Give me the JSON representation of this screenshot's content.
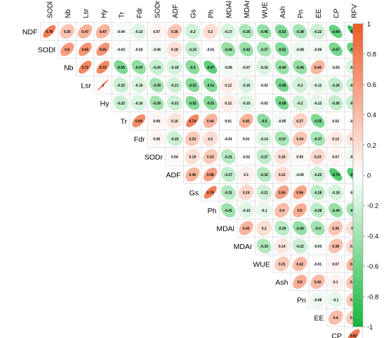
{
  "chart_data": {
    "type": "heatmap",
    "style": "ellipse correlogram (upper triangle)",
    "variables": [
      "NDF",
      "SODl",
      "Nb",
      "Lsr",
      "Hy",
      "Tr",
      "Fdr",
      "SODr",
      "ADF",
      "Gs",
      "Ph",
      "MDAl",
      "MDAr",
      "WUE",
      "Ash",
      "Pn",
      "EE",
      "CP",
      "RFV"
    ],
    "column_labels": [
      "SODl",
      "Nb",
      "Lsr",
      "Hy",
      "Tr",
      "Fdr",
      "SODr",
      "ADF",
      "Gs",
      "Ph",
      "MDAl",
      "MDAr",
      "WUE",
      "Ash",
      "Pn",
      "EE",
      "CP",
      "RFV"
    ],
    "row_labels": [
      "NDF",
      "SODl",
      "Nb",
      "Lsr",
      "Hy",
      "Tr",
      "Fdr",
      "SODr",
      "ADF",
      "Gs",
      "Ph",
      "MDAl",
      "MDAr",
      "WUE",
      "Ash",
      "Pn",
      "EE",
      "CP"
    ],
    "rows": [
      {
        "label": "NDF",
        "values": [
          0.78,
          0.36,
          0.47,
          0.47,
          -0.04,
          -0.13,
          0.07,
          0.36,
          -0.2,
          0.2,
          -0.17,
          -0.35,
          -0.45,
          -0.53,
          -0.38,
          -0.22,
          -0.64,
          -0.89
        ]
      },
      {
        "label": "SODl",
        "values": [
          0.6,
          0.65,
          0.65,
          -0.03,
          -0.02,
          -0.06,
          0.18,
          -0.24,
          -0.01,
          -0.44,
          -0.43,
          -0.37,
          -0.52,
          -0.08,
          -0.06,
          -0.57,
          -0.63
        ]
      },
      {
        "label": "Nb",
        "values": [
          0.72,
          0.72,
          -0.55,
          -0.47,
          -0.24,
          -0.19,
          -0.5,
          -0.67,
          -0.06,
          -0.07,
          -0.16,
          -0.44,
          -0.45,
          0.44,
          -0.03,
          -0.16
        ]
      },
      {
        "label": "Lsr",
        "values": [
          1,
          -0.22,
          -0.16,
          -0.39,
          -0.21,
          -0.52,
          -0.51,
          0.12,
          -0.15,
          -0.02,
          -0.58,
          -0.2,
          -0.12,
          -0.26,
          -0.22
        ]
      },
      {
        "label": "Hy",
        "values": [
          -0.22,
          -0.16,
          -0.39,
          -0.21,
          -0.52,
          -0.51,
          0.12,
          -0.15,
          -0.02,
          -0.58,
          -0.2,
          -0.12,
          -0.26,
          -0.22
        ]
      },
      {
        "label": "Tr",
        "values": [
          0.69,
          0.06,
          0.16,
          0.74,
          0.44,
          0.01,
          0.45,
          -0.5,
          -0.05,
          0.27,
          -0.55,
          0.02,
          -0.02
        ]
      },
      {
        "label": "Fdr",
        "values": [
          0.06,
          -0.22,
          0.32,
          0.2,
          -0.01,
          0.01,
          -0.14,
          -0.37,
          0.34,
          -0.37,
          0.13,
          0.15
        ]
      },
      {
        "label": "SODr",
        "values": [
          0.04,
          0.19,
          0.33,
          -0.31,
          -0.01,
          -0.27,
          0.18,
          0.05,
          0.23,
          0.07,
          -0.07
        ]
      },
      {
        "label": "ADF",
        "values": [
          0.45,
          0.58,
          -0.27,
          0.1,
          -0.32,
          0.22,
          -0.05,
          -0.22,
          -0.74,
          -0.73
        ]
      },
      {
        "label": "Gs",
        "values": [
          0.79,
          -0.31,
          0.24,
          -0.21,
          0.55,
          0.56,
          -0.28,
          -0.18,
          -0.01
        ]
      },
      {
        "label": "Ph",
        "values": [
          -0.41,
          -0.13,
          -0.1,
          0.4,
          0.5,
          -0.28,
          -0.44,
          -0.39
        ]
      },
      {
        "label": "MDAl",
        "values": [
          0.45,
          0.2,
          -0.29,
          -0.45,
          -0.4,
          0.35,
          0.2
        ]
      },
      {
        "label": "MDAr",
        "values": [
          -0.33,
          0.14,
          -0.22,
          -0.03,
          0.38,
          0.24
        ]
      },
      {
        "label": "WUE",
        "values": [
          0.31,
          0.42,
          -0.01,
          0.07,
          0.45
        ]
      },
      {
        "label": "Ash",
        "values": [
          0.5,
          0.42,
          0.1,
          0.35
        ]
      },
      {
        "label": "Pn",
        "values": [
          -0.08,
          -0.1,
          0.33
        ]
      },
      {
        "label": "EE",
        "values": [
          0.4,
          0.32
        ]
      },
      {
        "label": "CP",
        "values": [
          0.82
        ]
      }
    ],
    "colorbar": {
      "min": -1,
      "max": 1,
      "ticks": [
        1,
        0.8,
        0.6,
        0.4,
        0.2,
        0,
        -0.2,
        -0.4,
        -0.6,
        -0.8,
        -1
      ],
      "positive_color": "#f05a28",
      "zero_color": "#ffffff",
      "negative_color": "#12b83a"
    },
    "grid": true,
    "legend_placement": "right"
  }
}
